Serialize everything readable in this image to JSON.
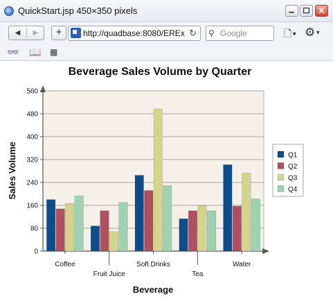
{
  "window": {
    "title": "QuickStart.jsp 450×350 pixels"
  },
  "toolbar": {
    "back_icon": "◀",
    "forward_icon": "▶",
    "new_tab_icon": "+",
    "url": "http://quadbase:8080/EREx",
    "reload_icon": "↻",
    "search_icon": "⚲",
    "search_placeholder": "Google",
    "page_menu_icon": "🗋",
    "tools_menu_icon": "⚙"
  },
  "bookmarks": {
    "reader_icon": "👓",
    "book_icon": "📖",
    "grid_icon": "▦"
  },
  "colors": {
    "plot_bg": "#f5f0ea",
    "series": [
      "#0e4d8c",
      "#b0505f",
      "#d4d58c",
      "#9fd1b3"
    ]
  },
  "chart_data": {
    "type": "bar",
    "title": "Beverage Sales Volume by Quarter",
    "xlabel": "Beverage",
    "ylabel": "Sales Volume",
    "categories": [
      "Coffee",
      "Fruit Juice",
      "Soft Drinks",
      "Tea",
      "Water"
    ],
    "ylim": [
      0,
      560
    ],
    "yticks": [
      0,
      80,
      160,
      240,
      320,
      400,
      480,
      560
    ],
    "grid": true,
    "legend_position": "right",
    "series": [
      {
        "name": "Q1",
        "values": [
          180,
          88,
          265,
          113,
          302
        ]
      },
      {
        "name": "Q2",
        "values": [
          148,
          141,
          212,
          141,
          157
        ]
      },
      {
        "name": "Q3",
        "values": [
          167,
          68,
          497,
          159,
          273
        ]
      },
      {
        "name": "Q4",
        "values": [
          193,
          170,
          229,
          141,
          183
        ]
      }
    ]
  }
}
